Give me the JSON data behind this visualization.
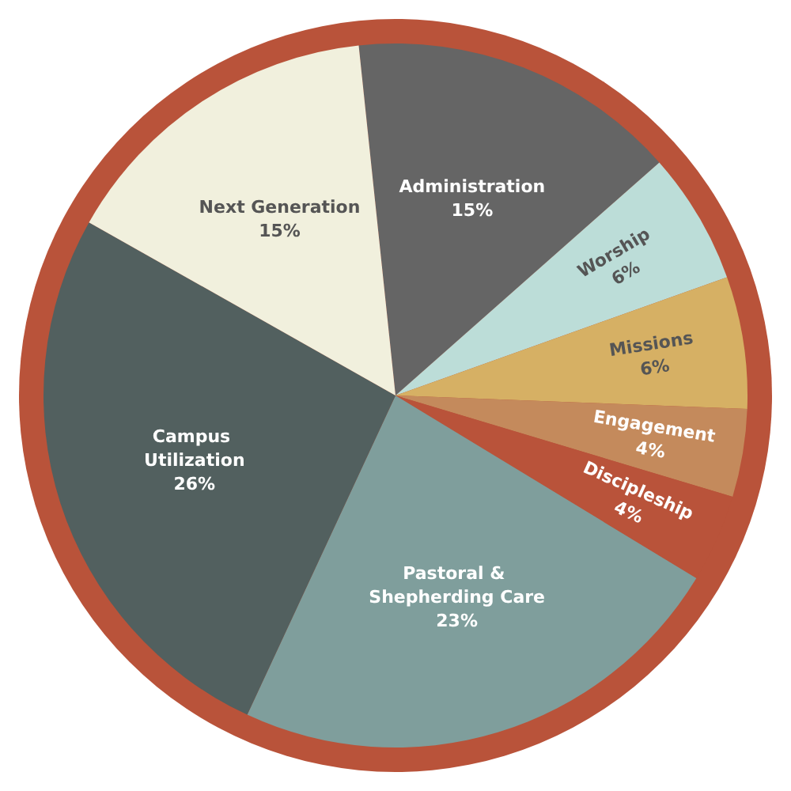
{
  "chart_data": {
    "type": "pie",
    "categories": [
      "Administration",
      "Worship",
      "Missions",
      "Engagement",
      "Discipleship",
      "Pastoral & Shepherding Care",
      "Campus Utilization",
      "Next Generation"
    ],
    "values": [
      15,
      6,
      6,
      4,
      4,
      23,
      26,
      15
    ],
    "value_labels": [
      "15%",
      "6%",
      "6%",
      "4%",
      "4%",
      "23%",
      "26%",
      "15%"
    ],
    "colors": [
      "#656565",
      "#bcddd8",
      "#d6b064",
      "#c48a5c",
      "#b9533a",
      "#7f9e9c",
      "#52605f",
      "#f1f0dd"
    ],
    "legend": false
  }
}
